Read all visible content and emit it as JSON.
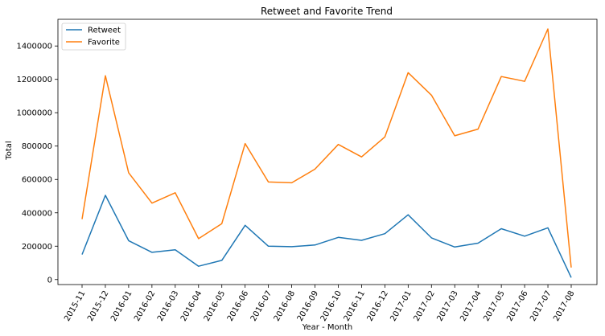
{
  "chart_data": {
    "type": "line",
    "title": "Retweet and Favorite Trend",
    "xlabel": "Year - Month",
    "ylabel": "Total",
    "categories": [
      "2015-11",
      "2015-12",
      "2016-01",
      "2016-02",
      "2016-03",
      "2016-04",
      "2016-05",
      "2016-06",
      "2016-07",
      "2016-08",
      "2016-09",
      "2016-10",
      "2016-11",
      "2016-12",
      "2017-01",
      "2017-02",
      "2017-03",
      "2017-04",
      "2017-05",
      "2017-06",
      "2017-07",
      "2017-08"
    ],
    "yticks": [
      "0",
      "200000",
      "400000",
      "600000",
      "800000",
      "1000000",
      "1200000",
      "1400000"
    ],
    "ylim": [
      -30000,
      1560000
    ],
    "grid": false,
    "legend_position": "top-left",
    "series": [
      {
        "name": "Retweet",
        "color": "#1f77b4",
        "values": [
          150000,
          505000,
          233000,
          163000,
          178000,
          80000,
          115000,
          325000,
          200000,
          197000,
          207000,
          253000,
          235000,
          275000,
          388000,
          250000,
          195000,
          218000,
          305000,
          260000,
          310000,
          12000
        ]
      },
      {
        "name": "Favorite",
        "color": "#ff7f0e",
        "values": [
          362000,
          1222000,
          640000,
          458000,
          520000,
          245000,
          335000,
          815000,
          585000,
          580000,
          662000,
          810000,
          735000,
          855000,
          1240000,
          1105000,
          862000,
          902000,
          1217000,
          1188000,
          1502000,
          72000
        ]
      }
    ]
  }
}
